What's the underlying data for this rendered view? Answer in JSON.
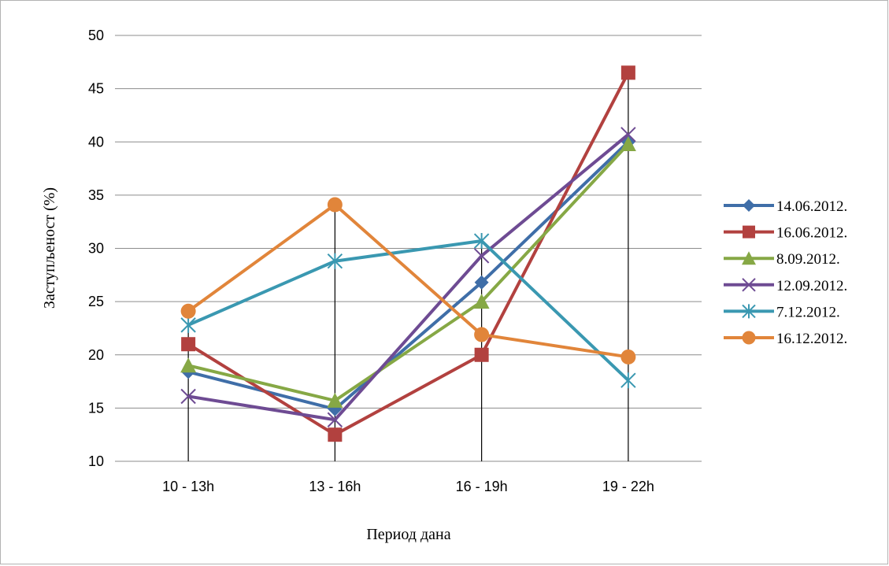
{
  "chart_data": {
    "type": "line",
    "title": "",
    "xlabel": "Период дана",
    "ylabel": "Заступљеност (%)",
    "categories": [
      "10 - 13h",
      "13 - 16h",
      "16 - 19h",
      "19 - 22h"
    ],
    "ylim": [
      10,
      50
    ],
    "yticks": [
      10,
      15,
      20,
      25,
      30,
      35,
      40,
      45,
      50
    ],
    "grid": "horizontal",
    "drop_lines": true,
    "legend": "right",
    "series": [
      {
        "name": "14.06.2012.",
        "values": [
          18.4,
          14.9,
          26.8,
          40.0
        ],
        "color": "#3f6ea8",
        "marker": "diamond"
      },
      {
        "name": "16.06.2012.",
        "values": [
          21.0,
          12.5,
          20.0,
          46.5
        ],
        "color": "#b2413f",
        "marker": "square"
      },
      {
        "name": "8.09.2012.",
        "values": [
          19.0,
          15.7,
          25.0,
          39.8
        ],
        "color": "#86a845",
        "marker": "triangle"
      },
      {
        "name": "12.09.2012.",
        "values": [
          16.1,
          13.9,
          29.3,
          40.7
        ],
        "color": "#6e4b93",
        "marker": "x"
      },
      {
        "name": "7.12.2012.",
        "values": [
          22.8,
          28.8,
          30.7,
          17.6
        ],
        "color": "#3a98b1",
        "marker": "star"
      },
      {
        "name": "16.12.2012.",
        "values": [
          24.1,
          34.1,
          21.9,
          19.8
        ],
        "color": "#e1853a",
        "marker": "circle"
      }
    ]
  }
}
